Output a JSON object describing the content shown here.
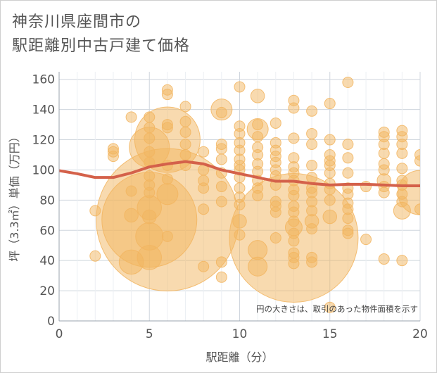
{
  "chart_data": {
    "type": "scatter",
    "title": "神奈川県座間市の\n駅距離別中古戸建て価格",
    "xlabel": "駅距離（分）",
    "ylabel": "坪（3.3㎡）単価（万円）",
    "note": "円の大きさは、取引のあった物件面積を示す",
    "xlim": [
      0,
      20
    ],
    "ylim": [
      0,
      165
    ],
    "xticks": [
      0,
      5,
      10,
      15,
      20
    ],
    "yticks": [
      0,
      20,
      40,
      60,
      80,
      100,
      120,
      140,
      160
    ],
    "grid": true,
    "bubble_color": "#F2B560",
    "line_color": "#D4614A",
    "series": [
      {
        "kind": "bubble",
        "points": [
          {
            "x": 2,
            "y": 73,
            "s": 1
          },
          {
            "x": 2,
            "y": 43,
            "s": 1
          },
          {
            "x": 3,
            "y": 114,
            "s": 1
          },
          {
            "x": 3,
            "y": 112,
            "s": 1
          },
          {
            "x": 3,
            "y": 109,
            "s": 1
          },
          {
            "x": 4,
            "y": 135,
            "s": 1
          },
          {
            "x": 4,
            "y": 86,
            "s": 1
          },
          {
            "x": 4,
            "y": 70,
            "s": 1.3
          },
          {
            "x": 4,
            "y": 39,
            "s": 2.3
          },
          {
            "x": 5,
            "y": 135,
            "s": 1
          },
          {
            "x": 5,
            "y": 128,
            "s": 1
          },
          {
            "x": 5,
            "y": 121,
            "s": 1
          },
          {
            "x": 5,
            "y": 115,
            "s": 3.8
          },
          {
            "x": 5,
            "y": 112,
            "s": 1
          },
          {
            "x": 5,
            "y": 105,
            "s": 1
          },
          {
            "x": 5,
            "y": 96,
            "s": 1
          },
          {
            "x": 5,
            "y": 90,
            "s": 1
          },
          {
            "x": 5,
            "y": 85,
            "s": 1
          },
          {
            "x": 5,
            "y": 75,
            "s": 2.3
          },
          {
            "x": 5,
            "y": 69,
            "s": 1.3
          },
          {
            "x": 5,
            "y": 67,
            "s": 9
          },
          {
            "x": 5,
            "y": 56,
            "s": 2.6
          },
          {
            "x": 5,
            "y": 42,
            "s": 2.3
          },
          {
            "x": 6,
            "y": 153,
            "s": 1
          },
          {
            "x": 6,
            "y": 150,
            "s": 1
          },
          {
            "x": 6,
            "y": 130,
            "s": 1
          },
          {
            "x": 6,
            "y": 128,
            "s": 1
          },
          {
            "x": 6,
            "y": 120,
            "s": 6.2
          },
          {
            "x": 6,
            "y": 103,
            "s": 1
          },
          {
            "x": 6,
            "y": 94,
            "s": 1
          },
          {
            "x": 6,
            "y": 84,
            "s": 2
          },
          {
            "x": 6,
            "y": 67,
            "s": 13.5
          },
          {
            "x": 6,
            "y": 56,
            "s": 1
          },
          {
            "x": 7,
            "y": 142,
            "s": 1
          },
          {
            "x": 7,
            "y": 132,
            "s": 1
          },
          {
            "x": 7,
            "y": 125,
            "s": 1
          },
          {
            "x": 7,
            "y": 117,
            "s": 1
          },
          {
            "x": 7,
            "y": 110,
            "s": 1
          },
          {
            "x": 7,
            "y": 103,
            "s": 1
          },
          {
            "x": 8,
            "y": 112,
            "s": 1
          },
          {
            "x": 8,
            "y": 100,
            "s": 1
          },
          {
            "x": 8,
            "y": 93,
            "s": 1
          },
          {
            "x": 8,
            "y": 88,
            "s": 1
          },
          {
            "x": 8,
            "y": 74,
            "s": 1
          },
          {
            "x": 8,
            "y": 36,
            "s": 1
          },
          {
            "x": 9,
            "y": 140,
            "s": 2
          },
          {
            "x": 9,
            "y": 138,
            "s": 1
          },
          {
            "x": 9,
            "y": 117,
            "s": 1
          },
          {
            "x": 9,
            "y": 114,
            "s": 1
          },
          {
            "x": 9,
            "y": 107,
            "s": 1
          },
          {
            "x": 9,
            "y": 98,
            "s": 1
          },
          {
            "x": 9,
            "y": 89,
            "s": 1
          },
          {
            "x": 9,
            "y": 79,
            "s": 1
          },
          {
            "x": 9,
            "y": 39,
            "s": 1
          },
          {
            "x": 9,
            "y": 29,
            "s": 1
          },
          {
            "x": 10,
            "y": 155,
            "s": 1
          },
          {
            "x": 10,
            "y": 129,
            "s": 1
          },
          {
            "x": 10,
            "y": 124,
            "s": 1
          },
          {
            "x": 10,
            "y": 118,
            "s": 1
          },
          {
            "x": 10,
            "y": 113,
            "s": 1
          },
          {
            "x": 10,
            "y": 107,
            "s": 1
          },
          {
            "x": 10,
            "y": 103,
            "s": 1
          },
          {
            "x": 10,
            "y": 100,
            "s": 1
          },
          {
            "x": 10,
            "y": 95,
            "s": 1
          },
          {
            "x": 10,
            "y": 88,
            "s": 1
          },
          {
            "x": 10,
            "y": 82,
            "s": 1
          },
          {
            "x": 10,
            "y": 77,
            "s": 1
          },
          {
            "x": 10,
            "y": 66,
            "s": 1.3
          },
          {
            "x": 10,
            "y": 57,
            "s": 1
          },
          {
            "x": 11,
            "y": 149,
            "s": 1.3
          },
          {
            "x": 11,
            "y": 130,
            "s": 1
          },
          {
            "x": 11,
            "y": 127,
            "s": 2
          },
          {
            "x": 11,
            "y": 122,
            "s": 1
          },
          {
            "x": 11,
            "y": 115,
            "s": 1
          },
          {
            "x": 11,
            "y": 110,
            "s": 1
          },
          {
            "x": 11,
            "y": 104,
            "s": 1
          },
          {
            "x": 11,
            "y": 99,
            "s": 1
          },
          {
            "x": 11,
            "y": 93,
            "s": 1
          },
          {
            "x": 11,
            "y": 88,
            "s": 1
          },
          {
            "x": 11,
            "y": 83,
            "s": 1
          },
          {
            "x": 11,
            "y": 47,
            "s": 1.8
          },
          {
            "x": 11,
            "y": 36,
            "s": 1.8
          },
          {
            "x": 12,
            "y": 131,
            "s": 1
          },
          {
            "x": 12,
            "y": 118,
            "s": 1
          },
          {
            "x": 12,
            "y": 113,
            "s": 1
          },
          {
            "x": 12,
            "y": 109,
            "s": 1
          },
          {
            "x": 12,
            "y": 105,
            "s": 1
          },
          {
            "x": 12,
            "y": 100,
            "s": 1
          },
          {
            "x": 12,
            "y": 96,
            "s": 1
          },
          {
            "x": 12,
            "y": 90,
            "s": 1
          },
          {
            "x": 12,
            "y": 79,
            "s": 1
          },
          {
            "x": 12,
            "y": 76,
            "s": 1
          },
          {
            "x": 12,
            "y": 72,
            "s": 1
          },
          {
            "x": 12,
            "y": 55,
            "s": 1
          },
          {
            "x": 13,
            "y": 146,
            "s": 1
          },
          {
            "x": 13,
            "y": 141,
            "s": 1
          },
          {
            "x": 13,
            "y": 121,
            "s": 1
          },
          {
            "x": 13,
            "y": 108,
            "s": 1
          },
          {
            "x": 13,
            "y": 102,
            "s": 1
          },
          {
            "x": 13,
            "y": 98,
            "s": 1
          },
          {
            "x": 13,
            "y": 93,
            "s": 1
          },
          {
            "x": 13,
            "y": 87,
            "s": 1
          },
          {
            "x": 13,
            "y": 83,
            "s": 1
          },
          {
            "x": 13,
            "y": 76,
            "s": 1
          },
          {
            "x": 13,
            "y": 72,
            "s": 1
          },
          {
            "x": 13,
            "y": 66,
            "s": 1
          },
          {
            "x": 13,
            "y": 62,
            "s": 1.6
          },
          {
            "x": 13,
            "y": 58,
            "s": 1
          },
          {
            "x": 13,
            "y": 55,
            "s": 12.2
          },
          {
            "x": 13,
            "y": 53,
            "s": 1
          },
          {
            "x": 13,
            "y": 45,
            "s": 1
          },
          {
            "x": 13,
            "y": 42,
            "s": 1
          },
          {
            "x": 13,
            "y": 38,
            "s": 1
          },
          {
            "x": 14,
            "y": 139,
            "s": 1
          },
          {
            "x": 14,
            "y": 124,
            "s": 1
          },
          {
            "x": 14,
            "y": 117,
            "s": 1
          },
          {
            "x": 14,
            "y": 103,
            "s": 1
          },
          {
            "x": 14,
            "y": 95,
            "s": 1
          },
          {
            "x": 14,
            "y": 88,
            "s": 1
          },
          {
            "x": 14,
            "y": 85,
            "s": 1
          },
          {
            "x": 14,
            "y": 79,
            "s": 1
          },
          {
            "x": 14,
            "y": 73,
            "s": 1
          },
          {
            "x": 14,
            "y": 66,
            "s": 1.3
          },
          {
            "x": 14,
            "y": 61,
            "s": 1
          },
          {
            "x": 14,
            "y": 42,
            "s": 1
          },
          {
            "x": 14,
            "y": 39,
            "s": 1
          },
          {
            "x": 15,
            "y": 144,
            "s": 1
          },
          {
            "x": 15,
            "y": 120,
            "s": 1
          },
          {
            "x": 15,
            "y": 110,
            "s": 1
          },
          {
            "x": 15,
            "y": 106,
            "s": 1
          },
          {
            "x": 15,
            "y": 103,
            "s": 1
          },
          {
            "x": 15,
            "y": 98,
            "s": 1
          },
          {
            "x": 15,
            "y": 91,
            "s": 1
          },
          {
            "x": 15,
            "y": 87,
            "s": 1
          },
          {
            "x": 15,
            "y": 80,
            "s": 1
          },
          {
            "x": 15,
            "y": 69,
            "s": 1.3
          },
          {
            "x": 15,
            "y": 9,
            "s": 1
          },
          {
            "x": 16,
            "y": 158,
            "s": 1
          },
          {
            "x": 16,
            "y": 117,
            "s": 1
          },
          {
            "x": 16,
            "y": 108,
            "s": 1
          },
          {
            "x": 16,
            "y": 98,
            "s": 1
          },
          {
            "x": 16,
            "y": 88,
            "s": 1
          },
          {
            "x": 16,
            "y": 84,
            "s": 1
          },
          {
            "x": 16,
            "y": 78,
            "s": 1
          },
          {
            "x": 16,
            "y": 74,
            "s": 1
          },
          {
            "x": 16,
            "y": 68,
            "s": 1
          },
          {
            "x": 16,
            "y": 60,
            "s": 1
          },
          {
            "x": 16,
            "y": 58,
            "s": 1
          },
          {
            "x": 17,
            "y": 89,
            "s": 1
          },
          {
            "x": 17,
            "y": 54,
            "s": 1
          },
          {
            "x": 18,
            "y": 125,
            "s": 1
          },
          {
            "x": 18,
            "y": 122,
            "s": 1
          },
          {
            "x": 18,
            "y": 117,
            "s": 1
          },
          {
            "x": 18,
            "y": 111,
            "s": 1
          },
          {
            "x": 18,
            "y": 104,
            "s": 1
          },
          {
            "x": 18,
            "y": 100,
            "s": 1
          },
          {
            "x": 18,
            "y": 93,
            "s": 1.3
          },
          {
            "x": 18,
            "y": 89,
            "s": 1
          },
          {
            "x": 18,
            "y": 85,
            "s": 1
          },
          {
            "x": 18,
            "y": 41,
            "s": 1
          },
          {
            "x": 19,
            "y": 126,
            "s": 1
          },
          {
            "x": 19,
            "y": 122,
            "s": 1
          },
          {
            "x": 19,
            "y": 117,
            "s": 1
          },
          {
            "x": 19,
            "y": 111,
            "s": 1
          },
          {
            "x": 19,
            "y": 101,
            "s": 1
          },
          {
            "x": 19,
            "y": 93,
            "s": 1
          },
          {
            "x": 19,
            "y": 90,
            "s": 1
          },
          {
            "x": 19,
            "y": 84,
            "s": 1
          },
          {
            "x": 19,
            "y": 79,
            "s": 1
          },
          {
            "x": 19,
            "y": 73,
            "s": 1.6
          },
          {
            "x": 19,
            "y": 40,
            "s": 1
          },
          {
            "x": 20,
            "y": 110,
            "s": 1
          },
          {
            "x": 20,
            "y": 106,
            "s": 1
          },
          {
            "x": 20,
            "y": 85,
            "s": 4.2
          },
          {
            "x": 20,
            "y": 74,
            "s": 1
          }
        ]
      },
      {
        "kind": "line",
        "x": [
          0,
          1,
          2,
          3,
          4,
          5,
          6,
          7,
          8,
          9,
          10,
          11,
          12,
          13,
          14,
          15,
          16,
          17,
          18,
          19,
          20
        ],
        "y": [
          99.5,
          97.5,
          95,
          95,
          98,
          102,
          104,
          105.5,
          104,
          100,
          97.5,
          95,
          92.5,
          92.5,
          91,
          90,
          90.5,
          90.5,
          90,
          89.5,
          89.5
        ]
      }
    ]
  }
}
